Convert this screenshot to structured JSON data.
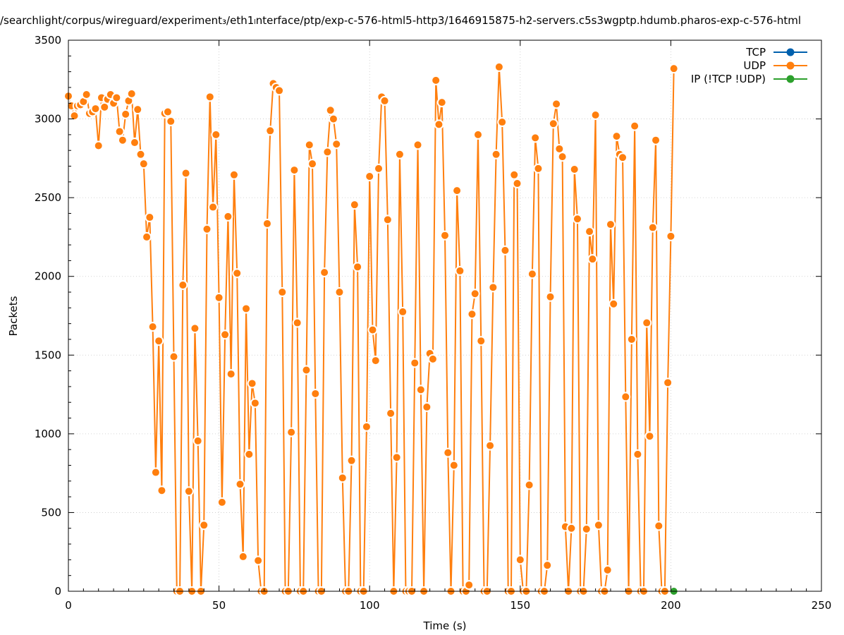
{
  "chart_data": {
    "type": "line",
    "title": "/searchlight/corpus/wireguard/experiment₃/eth1ₗnterface/ptp/exp-c-576-html5-http3/1646915875-h2-servers.c5s3wgptp.hdumb.pharos-exp-c-576-html",
    "xlabel": "Time (s)",
    "ylabel": "Packets",
    "xlim": [
      0,
      250
    ],
    "ylim": [
      0,
      3500
    ],
    "x_ticks": [
      0,
      50,
      100,
      150,
      200,
      250
    ],
    "y_ticks": [
      0,
      500,
      1000,
      1500,
      2000,
      2500,
      3000,
      3500
    ],
    "grid": true,
    "legend_position": "top-right",
    "series": [
      {
        "name": "TCP",
        "color": "#0060ad",
        "points": []
      },
      {
        "name": "UDP",
        "color": "#ff7f0e",
        "points": [
          [
            0,
            3145
          ],
          [
            1,
            3083
          ],
          [
            2,
            3020
          ],
          [
            3,
            3083
          ],
          [
            4,
            3090
          ],
          [
            5,
            3110
          ],
          [
            6,
            3155
          ],
          [
            7,
            3035
          ],
          [
            8,
            3045
          ],
          [
            9,
            3065
          ],
          [
            10,
            2830
          ],
          [
            11,
            3135
          ],
          [
            12,
            3075
          ],
          [
            13,
            3125
          ],
          [
            14,
            3155
          ],
          [
            15,
            3100
          ],
          [
            16,
            3135
          ],
          [
            17,
            2920
          ],
          [
            18,
            2865
          ],
          [
            19,
            3030
          ],
          [
            20,
            3115
          ],
          [
            21,
            3160
          ],
          [
            22,
            2850
          ],
          [
            23,
            3060
          ],
          [
            24,
            2775
          ],
          [
            25,
            2715
          ],
          [
            26,
            2250
          ],
          [
            27,
            2375
          ],
          [
            28,
            1680
          ],
          [
            29,
            755
          ],
          [
            30,
            1590
          ],
          [
            31,
            640
          ],
          [
            32,
            3035
          ],
          [
            33,
            3045
          ],
          [
            34,
            2985
          ],
          [
            35,
            1490
          ],
          [
            36,
            0
          ],
          [
            37,
            0
          ],
          [
            38,
            1945
          ],
          [
            39,
            2655
          ],
          [
            40,
            635
          ],
          [
            41,
            0
          ],
          [
            42,
            1670
          ],
          [
            43,
            955
          ],
          [
            44,
            0
          ],
          [
            45,
            420
          ],
          [
            46,
            2300
          ],
          [
            47,
            3140
          ],
          [
            48,
            2440
          ],
          [
            49,
            2900
          ],
          [
            50,
            1865
          ],
          [
            51,
            565
          ],
          [
            52,
            1630
          ],
          [
            53,
            2380
          ],
          [
            54,
            1380
          ],
          [
            55,
            2645
          ],
          [
            56,
            2020
          ],
          [
            57,
            680
          ],
          [
            58,
            220
          ],
          [
            59,
            1795
          ],
          [
            60,
            870
          ],
          [
            61,
            1320
          ],
          [
            62,
            1195
          ],
          [
            63,
            195
          ],
          [
            64,
            0
          ],
          [
            65,
            0
          ],
          [
            66,
            2335
          ],
          [
            67,
            2925
          ],
          [
            68,
            3225
          ],
          [
            69,
            3200
          ],
          [
            70,
            3180
          ],
          [
            71,
            1900
          ],
          [
            72,
            0
          ],
          [
            73,
            0
          ],
          [
            74,
            1010
          ],
          [
            75,
            2675
          ],
          [
            76,
            1705
          ],
          [
            77,
            0
          ],
          [
            78,
            0
          ],
          [
            79,
            1405
          ],
          [
            80,
            2835
          ],
          [
            81,
            2715
          ],
          [
            82,
            1255
          ],
          [
            83,
            0
          ],
          [
            84,
            0
          ],
          [
            85,
            2025
          ],
          [
            86,
            2790
          ],
          [
            87,
            3055
          ],
          [
            88,
            3000
          ],
          [
            89,
            2840
          ],
          [
            90,
            1900
          ],
          [
            91,
            720
          ],
          [
            92,
            0
          ],
          [
            93,
            0
          ],
          [
            94,
            830
          ],
          [
            95,
            2455
          ],
          [
            96,
            2060
          ],
          [
            97,
            0
          ],
          [
            98,
            0
          ],
          [
            99,
            1045
          ],
          [
            100,
            2635
          ],
          [
            101,
            1660
          ],
          [
            102,
            1465
          ],
          [
            103,
            2685
          ],
          [
            104,
            3140
          ],
          [
            105,
            3115
          ],
          [
            106,
            2360
          ],
          [
            107,
            1130
          ],
          [
            108,
            0
          ],
          [
            109,
            850
          ],
          [
            110,
            2775
          ],
          [
            111,
            1775
          ],
          [
            112,
            0
          ],
          [
            113,
            0
          ],
          [
            114,
            0
          ],
          [
            115,
            1450
          ],
          [
            116,
            2835
          ],
          [
            117,
            1280
          ],
          [
            118,
            0
          ],
          [
            119,
            1170
          ],
          [
            120,
            1510
          ],
          [
            121,
            1475
          ],
          [
            122,
            3245
          ],
          [
            123,
            2965
          ],
          [
            124,
            3105
          ],
          [
            125,
            2260
          ],
          [
            126,
            880
          ],
          [
            127,
            0
          ],
          [
            128,
            800
          ],
          [
            129,
            2545
          ],
          [
            130,
            2035
          ],
          [
            131,
            0
          ],
          [
            132,
            0
          ],
          [
            133,
            40
          ],
          [
            134,
            1760
          ],
          [
            135,
            1890
          ],
          [
            136,
            2900
          ],
          [
            137,
            1590
          ],
          [
            138,
            0
          ],
          [
            139,
            0
          ],
          [
            140,
            925
          ],
          [
            141,
            1930
          ],
          [
            142,
            2775
          ],
          [
            143,
            3330
          ],
          [
            144,
            2980
          ],
          [
            145,
            2165
          ],
          [
            146,
            0
          ],
          [
            147,
            0
          ],
          [
            148,
            2645
          ],
          [
            149,
            2590
          ],
          [
            150,
            200
          ],
          [
            151,
            0
          ],
          [
            152,
            0
          ],
          [
            153,
            675
          ],
          [
            154,
            2015
          ],
          [
            155,
            2880
          ],
          [
            156,
            2685
          ],
          [
            157,
            0
          ],
          [
            158,
            0
          ],
          [
            159,
            165
          ],
          [
            160,
            1870
          ],
          [
            161,
            2970
          ],
          [
            162,
            3095
          ],
          [
            163,
            2810
          ],
          [
            164,
            2760
          ],
          [
            165,
            410
          ],
          [
            166,
            0
          ],
          [
            167,
            400
          ],
          [
            168,
            2680
          ],
          [
            169,
            2365
          ],
          [
            170,
            0
          ],
          [
            171,
            0
          ],
          [
            172,
            395
          ],
          [
            173,
            2285
          ],
          [
            174,
            2110
          ],
          [
            175,
            3025
          ],
          [
            176,
            420
          ],
          [
            177,
            0
          ],
          [
            178,
            0
          ],
          [
            179,
            135
          ],
          [
            180,
            2330
          ],
          [
            181,
            1825
          ],
          [
            182,
            2890
          ],
          [
            183,
            2775
          ],
          [
            184,
            2755
          ],
          [
            185,
            1235
          ],
          [
            186,
            0
          ],
          [
            187,
            1600
          ],
          [
            188,
            2955
          ],
          [
            189,
            870
          ],
          [
            190,
            0
          ],
          [
            191,
            0
          ],
          [
            192,
            1705
          ],
          [
            193,
            985
          ],
          [
            194,
            2310
          ],
          [
            195,
            2865
          ],
          [
            196,
            415
          ],
          [
            197,
            0
          ],
          [
            198,
            0
          ],
          [
            199,
            1325
          ],
          [
            200,
            2255
          ],
          [
            201,
            3320
          ]
        ]
      },
      {
        "name": "IP (!TCP  !UDP)",
        "color": "#2ca02c",
        "points": [
          [
            201,
            0
          ]
        ]
      }
    ]
  }
}
